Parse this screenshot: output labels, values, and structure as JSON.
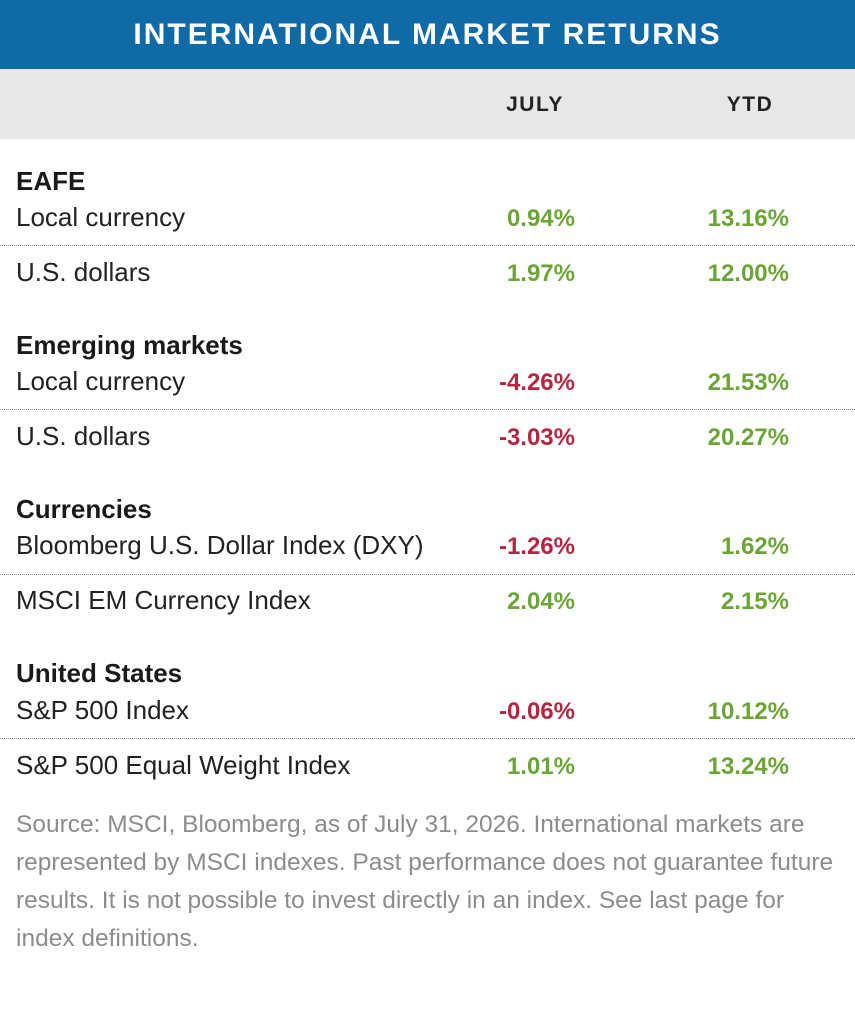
{
  "title": "INTERNATIONAL MARKET RETURNS",
  "columns": {
    "july": "JULY",
    "ytd": "YTD"
  },
  "colors": {
    "title_bar": "#0f6aa6",
    "header_bg": "#e6e7e8",
    "positive": "#6aa535",
    "negative": "#b8243f",
    "footnote": "#8a8c8e"
  },
  "sections": [
    {
      "title": "EAFE",
      "rows": [
        {
          "label": "Local currency",
          "july": "0.94%",
          "ytd": "13.16%"
        },
        {
          "label": "U.S. dollars",
          "july": "1.97%",
          "ytd": "12.00%"
        }
      ]
    },
    {
      "title": "Emerging markets",
      "rows": [
        {
          "label": "Local currency",
          "july": "-4.26%",
          "ytd": "21.53%"
        },
        {
          "label": "U.S. dollars",
          "july": "-3.03%",
          "ytd": "20.27%"
        }
      ]
    },
    {
      "title": "Currencies",
      "rows": [
        {
          "label": "Bloomberg U.S. Dollar Index (DXY)",
          "july": "-1.26%",
          "ytd": "1.62%"
        },
        {
          "label": "MSCI EM Currency Index",
          "july": "2.04%",
          "ytd": "2.15%"
        }
      ]
    },
    {
      "title": "United States",
      "rows": [
        {
          "label": "S&P 500 Index",
          "july": "-0.06%",
          "ytd": "10.12%"
        },
        {
          "label": "S&P 500 Equal Weight Index",
          "july": "1.01%",
          "ytd": "13.24%"
        }
      ]
    }
  ],
  "footnote": "Source: MSCI, Bloomberg, as of July 31, 2026. International markets are represented by MSCI indexes. Past performance does not guarantee future results. It is not possible to invest directly in an index. See last page for index definitions."
}
